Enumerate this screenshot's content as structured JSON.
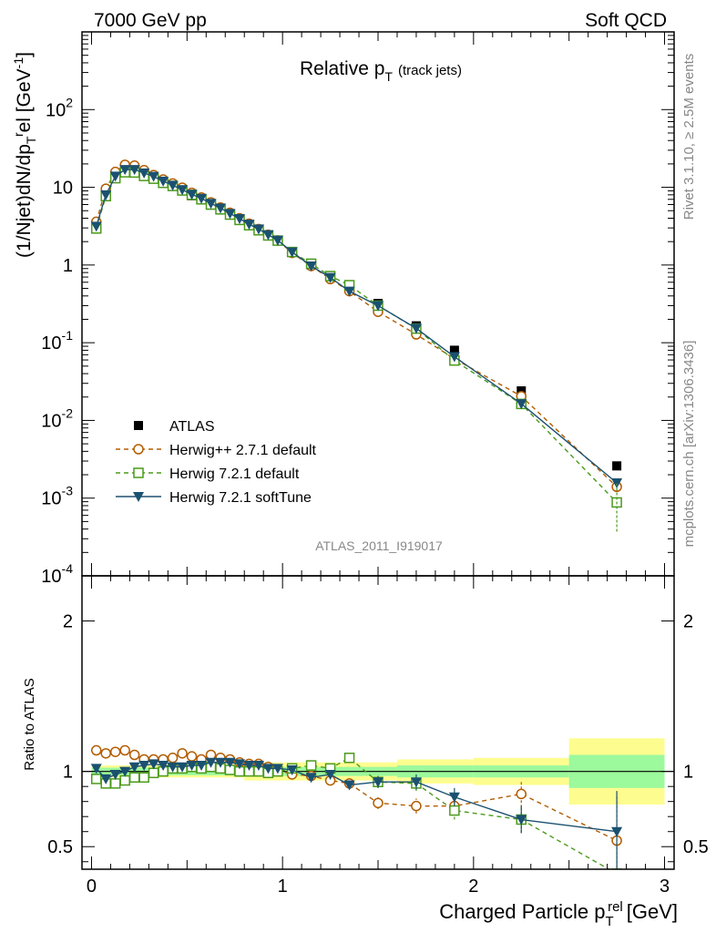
{
  "header": {
    "left": "7000 GeV pp",
    "right": "Soft QCD"
  },
  "side_text": {
    "rivet": "Rivet 3.1.10, ≥ 2.5M events",
    "mcplots": "mcplots.cern.ch [arXiv:1306.3436]"
  },
  "chart_data": [
    {
      "type": "scatter",
      "panel": "main",
      "title": "Relative p_T (track jets)",
      "title_main": "Relative p",
      "title_sub": "T",
      "title_extra": "(track jets)",
      "ylabel": "(1/Njet)dN/dp_T^rel [GeV^-1]",
      "xlabel": "Charged Particle p_T^rel [GeV]",
      "xlabel_main": "Charged Particle p",
      "xlabel_sub": "T",
      "xlabel_sup": "rel",
      "xlabel_unit": "[GeV]",
      "ylim": [
        0.0001,
        1000
      ],
      "xlim": [
        -0.05,
        3.05
      ],
      "yscale": "log",
      "watermark": "ATLAS_2011_I919017",
      "x_ticks": [
        "0",
        "1",
        "2",
        "3"
      ],
      "y_ticks": [
        {
          "base": "10",
          "exp": "-4",
          "v": 0.0001
        },
        {
          "base": "10",
          "exp": "-3",
          "v": 0.001
        },
        {
          "base": "10",
          "exp": "-2",
          "v": 0.01
        },
        {
          "base": "10",
          "exp": "-1",
          "v": 0.1
        },
        {
          "base": "1",
          "exp": "",
          "v": 1
        },
        {
          "base": "10",
          "exp": "",
          "v": 10
        },
        {
          "base": "10",
          "exp": "2",
          "v": 100
        }
      ],
      "legend_position": "lower-left",
      "x": [
        0.025,
        0.075,
        0.125,
        0.175,
        0.225,
        0.275,
        0.325,
        0.375,
        0.425,
        0.475,
        0.525,
        0.575,
        0.625,
        0.675,
        0.725,
        0.775,
        0.825,
        0.875,
        0.925,
        0.975,
        1.05,
        1.15,
        1.25,
        1.35,
        1.5,
        1.7,
        1.9,
        2.25,
        2.75
      ],
      "series": [
        {
          "name": "ATLAS",
          "color": "#000000",
          "marker": "square-filled",
          "line": "none",
          "values": [
            3.1,
            8.4,
            14.2,
            17.0,
            16.5,
            14.8,
            13.2,
            11.6,
            10.3,
            9.0,
            7.8,
            6.9,
            5.9,
            5.1,
            4.4,
            3.8,
            3.25,
            2.8,
            2.4,
            2.05,
            1.45,
            1.0,
            0.7,
            0.5,
            0.32,
            0.165,
            0.08,
            0.024,
            0.0026
          ]
        },
        {
          "name": "Herwig++ 2.7.1 default",
          "color": "#b35c00",
          "marker": "circle-open",
          "line": "dashed",
          "values": [
            3.6,
            9.6,
            15.8,
            19.5,
            19.0,
            16.6,
            14.4,
            12.6,
            11.2,
            9.9,
            8.5,
            7.4,
            6.4,
            5.5,
            4.7,
            4.0,
            3.4,
            2.9,
            2.45,
            2.07,
            1.43,
            0.97,
            0.66,
            0.46,
            0.25,
            0.128,
            0.062,
            0.0205,
            0.0014
          ]
        },
        {
          "name": "Herwig 7.2.1 default",
          "color": "#4a9a1a",
          "marker": "square-open",
          "line": "dashed",
          "values": [
            2.95,
            7.7,
            13.1,
            15.6,
            15.5,
            14.0,
            12.9,
            11.4,
            10.4,
            9.1,
            8.0,
            7.0,
            6.0,
            5.2,
            4.45,
            3.8,
            3.25,
            2.8,
            2.4,
            2.06,
            1.47,
            1.04,
            0.72,
            0.55,
            0.3,
            0.152,
            0.059,
            0.0163,
            0.00088
          ]
        },
        {
          "name": "Herwig 7.2.1 softTune",
          "color": "#1b5170",
          "marker": "triangle-down-filled",
          "line": "solid",
          "values": [
            3.15,
            8.0,
            13.9,
            16.9,
            16.9,
            15.3,
            13.8,
            12.0,
            10.6,
            9.3,
            8.1,
            7.2,
            6.2,
            5.4,
            4.6,
            3.95,
            3.35,
            2.9,
            2.45,
            2.08,
            1.47,
            0.97,
            0.69,
            0.46,
            0.3,
            0.153,
            0.066,
            0.0164,
            0.00157
          ]
        }
      ]
    },
    {
      "type": "scatter",
      "panel": "ratio",
      "ylabel": "Ratio to ATLAS",
      "ylim": [
        0.35,
        2.3
      ],
      "xlim": [
        -0.05,
        3.05
      ],
      "y_ticks": [
        "0.5",
        "1",
        "2"
      ],
      "reference_line": 1,
      "bands": [
        {
          "x0": 0.0,
          "x1": 0.8,
          "inner": 0.025,
          "outer": 0.04
        },
        {
          "x0": 0.8,
          "x1": 1.6,
          "inner": 0.03,
          "outer": 0.06
        },
        {
          "x0": 1.6,
          "x1": 2.0,
          "inner": 0.04,
          "outer": 0.08
        },
        {
          "x0": 2.0,
          "x1": 2.5,
          "inner": 0.04,
          "outer": 0.09
        },
        {
          "x0": 2.5,
          "x1": 3.0,
          "inner": 0.11,
          "outer": 0.22
        }
      ],
      "band_colors": {
        "inner": "#9cf99c",
        "outer": "#fdfd8f"
      },
      "x": [
        0.025,
        0.075,
        0.125,
        0.175,
        0.225,
        0.275,
        0.325,
        0.375,
        0.425,
        0.475,
        0.525,
        0.575,
        0.625,
        0.675,
        0.725,
        0.775,
        0.825,
        0.875,
        0.925,
        0.975,
        1.05,
        1.15,
        1.25,
        1.35,
        1.5,
        1.7,
        1.9,
        2.25,
        2.75
      ],
      "series": [
        {
          "name": "Herwig++ 2.7.1 default",
          "color": "#b35c00",
          "marker": "circle-open",
          "line": "dashed",
          "values": [
            1.14,
            1.12,
            1.13,
            1.14,
            1.11,
            1.08,
            1.08,
            1.08,
            1.09,
            1.12,
            1.1,
            1.08,
            1.11,
            1.09,
            1.08,
            1.06,
            1.05,
            1.05,
            1.03,
            1.01,
            0.98,
            0.97,
            0.94,
            0.92,
            0.79,
            0.77,
            0.77,
            0.85,
            0.54
          ],
          "errors": [
            0.01,
            0.01,
            0.01,
            0.01,
            0.01,
            0.01,
            0.01,
            0.01,
            0.01,
            0.01,
            0.01,
            0.01,
            0.01,
            0.01,
            0.01,
            0.01,
            0.01,
            0.01,
            0.01,
            0.01,
            0.02,
            0.02,
            0.03,
            0.03,
            0.04,
            0.05,
            0.06,
            0.09,
            0.3
          ]
        },
        {
          "name": "Herwig 7.2.1 default",
          "color": "#4a9a1a",
          "marker": "square-open",
          "line": "dashed",
          "values": [
            0.95,
            0.92,
            0.92,
            0.94,
            0.96,
            0.96,
            0.99,
            1.0,
            1.02,
            1.02,
            1.03,
            1.02,
            1.03,
            1.02,
            1.01,
            1.0,
            1.0,
            1.0,
            0.99,
            1.0,
            1.02,
            1.04,
            1.02,
            1.09,
            0.93,
            0.92,
            0.74,
            0.68,
            0.32
          ],
          "errors": [
            0.01,
            0.01,
            0.01,
            0.01,
            0.01,
            0.01,
            0.01,
            0.01,
            0.01,
            0.01,
            0.01,
            0.01,
            0.01,
            0.01,
            0.01,
            0.01,
            0.01,
            0.01,
            0.01,
            0.01,
            0.02,
            0.02,
            0.03,
            0.03,
            0.04,
            0.05,
            0.06,
            0.09,
            0.3
          ]
        },
        {
          "name": "Herwig 7.2.1 softTune",
          "color": "#1b5170",
          "marker": "triangle-down-filled",
          "line": "solid",
          "values": [
            1.02,
            0.95,
            0.98,
            1.0,
            1.03,
            1.04,
            1.05,
            1.04,
            1.03,
            1.03,
            1.04,
            1.04,
            1.06,
            1.06,
            1.06,
            1.05,
            1.04,
            1.04,
            1.02,
            1.02,
            1.01,
            0.96,
            0.98,
            0.91,
            0.93,
            0.93,
            0.83,
            0.68,
            0.6
          ],
          "errors": [
            0.01,
            0.01,
            0.01,
            0.01,
            0.01,
            0.01,
            0.01,
            0.01,
            0.01,
            0.01,
            0.01,
            0.01,
            0.01,
            0.01,
            0.01,
            0.01,
            0.01,
            0.01,
            0.01,
            0.01,
            0.02,
            0.02,
            0.03,
            0.03,
            0.04,
            0.05,
            0.06,
            0.09,
            0.27
          ]
        }
      ]
    }
  ]
}
